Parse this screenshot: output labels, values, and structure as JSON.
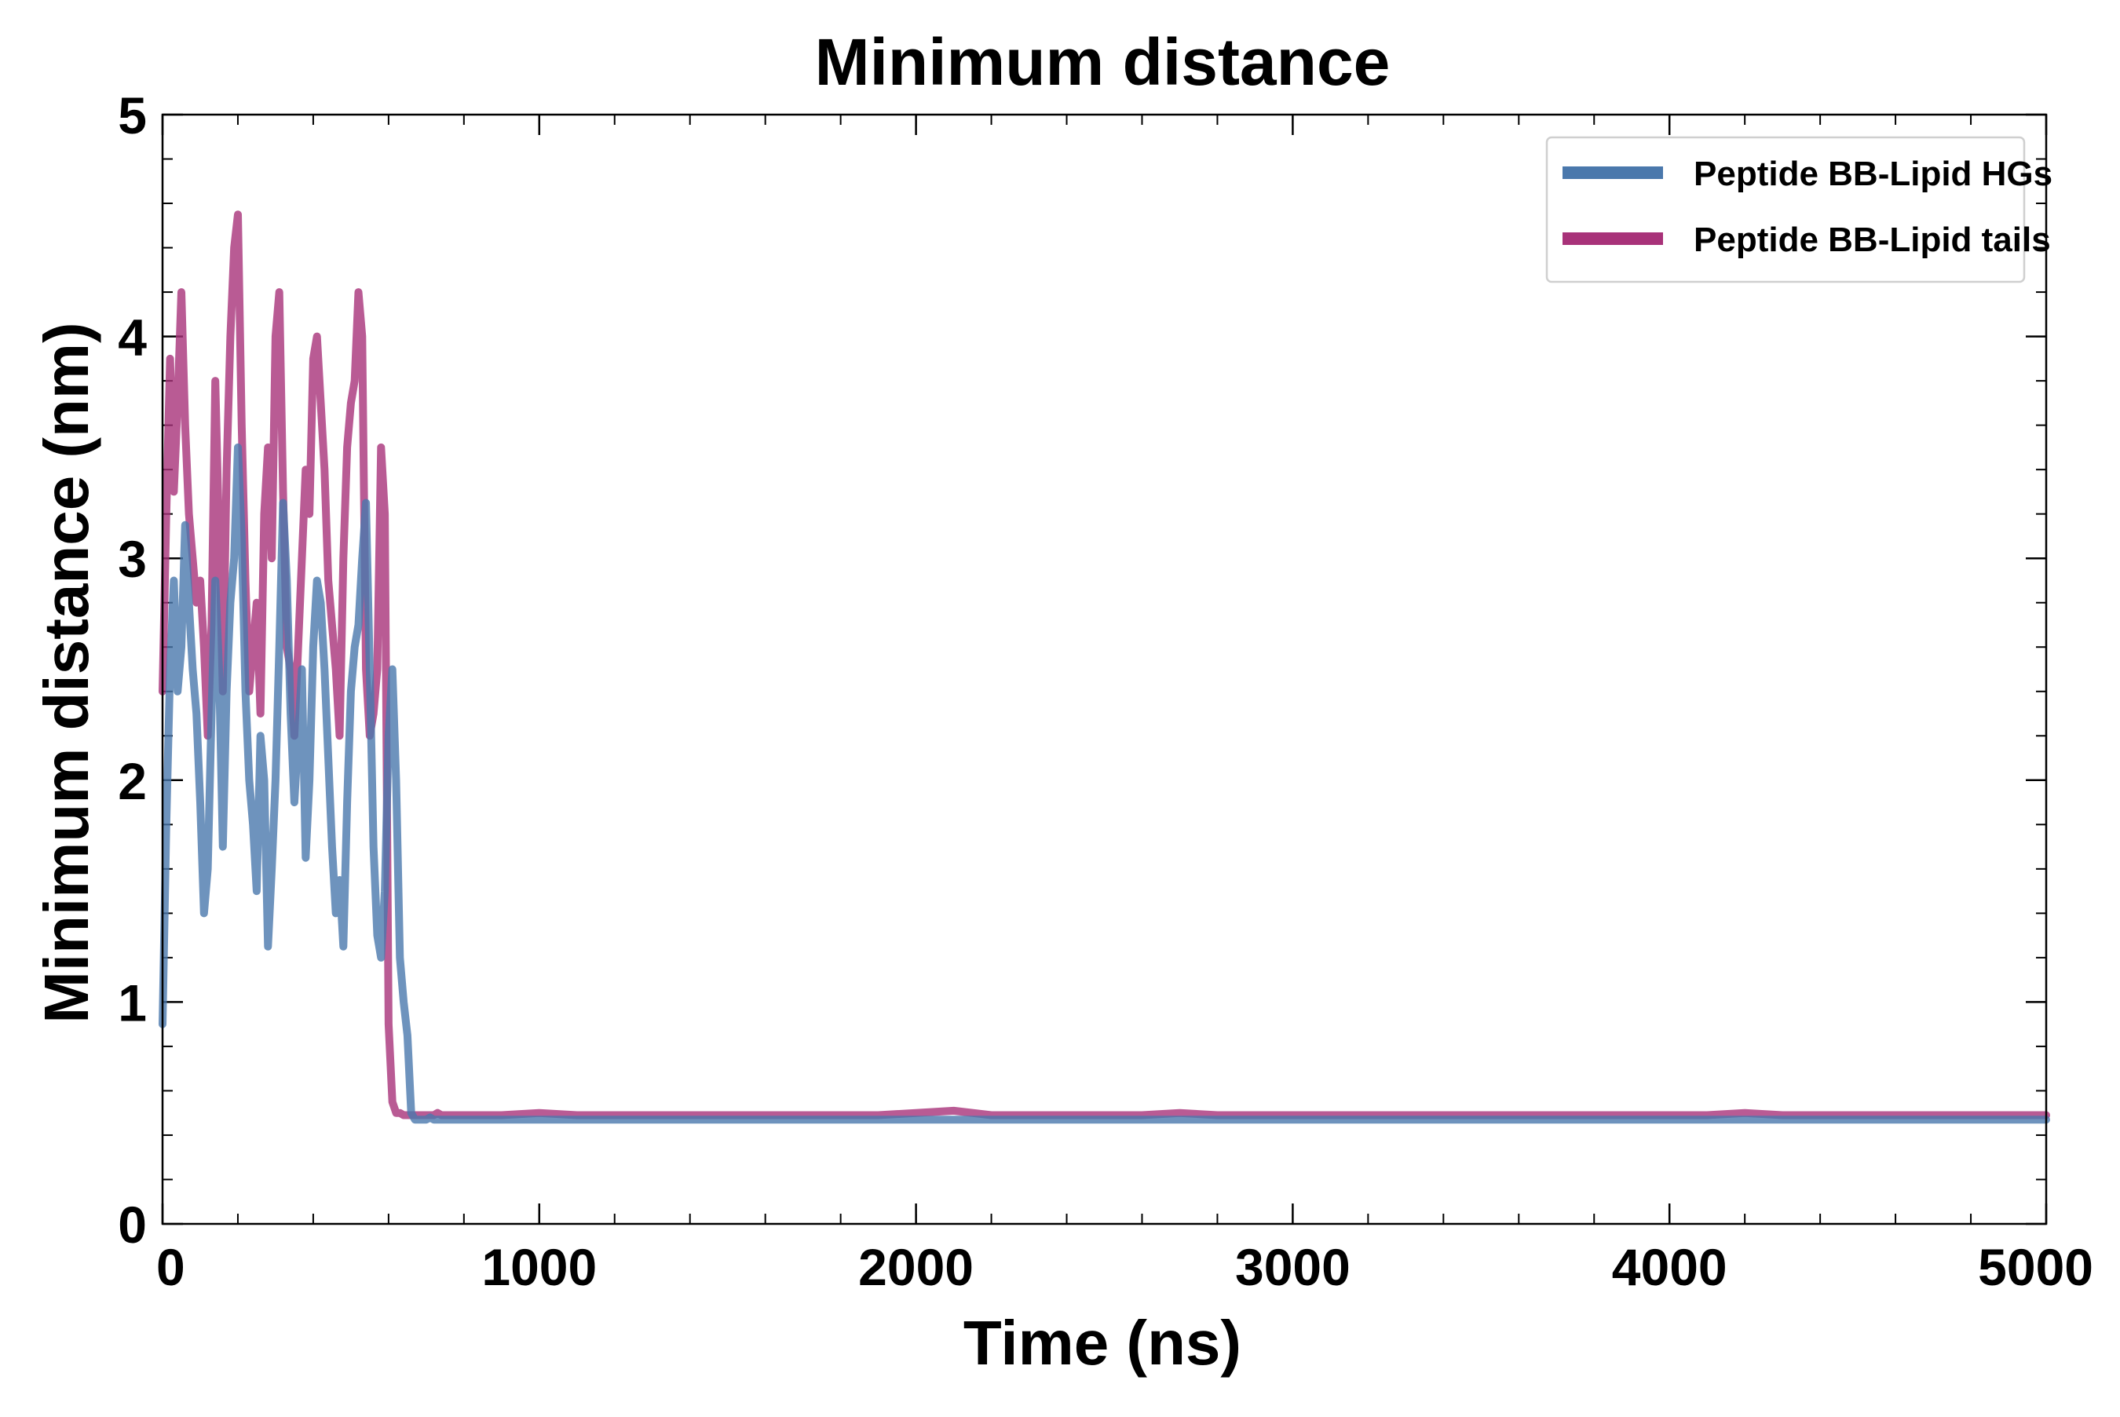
{
  "chart_data": {
    "type": "line",
    "title": "Minimum distance",
    "xlabel": "Time (ns)",
    "ylabel": "Minimum distance (nm)",
    "xlim": [
      0,
      5000
    ],
    "ylim": [
      0,
      5
    ],
    "x_ticks": [
      0,
      1000,
      2000,
      3000,
      4000,
      5000
    ],
    "y_ticks": [
      0,
      1,
      2,
      3,
      4,
      5
    ],
    "x_minor_step": 200,
    "y_minor_step": 0.2,
    "grid": false,
    "legend_position": "top-right",
    "series": [
      {
        "name": "Peptide BB-Lipid HGs",
        "color": "#4a78ac",
        "x": [
          0,
          10,
          20,
          30,
          40,
          50,
          60,
          70,
          80,
          90,
          100,
          110,
          120,
          130,
          140,
          150,
          160,
          170,
          180,
          190,
          200,
          210,
          220,
          230,
          240,
          250,
          260,
          270,
          280,
          290,
          300,
          310,
          320,
          330,
          340,
          350,
          360,
          370,
          380,
          390,
          400,
          410,
          420,
          430,
          440,
          450,
          460,
          470,
          480,
          490,
          500,
          510,
          520,
          530,
          540,
          550,
          560,
          570,
          580,
          590,
          600,
          610,
          620,
          630,
          640,
          650,
          660,
          670,
          680,
          690,
          700,
          710,
          720,
          730,
          740,
          760,
          800,
          900,
          1000,
          1100,
          1200,
          1300,
          1400,
          1500,
          1600,
          1700,
          1800,
          1900,
          2000,
          2100,
          2200,
          2300,
          2400,
          2500,
          2600,
          2700,
          2800,
          2900,
          3000,
          3100,
          3200,
          3300,
          3400,
          3500,
          3600,
          3700,
          3800,
          3900,
          4000,
          4100,
          4200,
          4300,
          4400,
          4500,
          4600,
          4700,
          4800,
          4900,
          5000
        ],
        "values": [
          0.9,
          1.8,
          2.5,
          2.9,
          2.4,
          2.6,
          3.15,
          2.8,
          2.5,
          2.3,
          1.9,
          1.4,
          1.6,
          2.3,
          2.9,
          2.5,
          1.7,
          2.4,
          2.8,
          3.0,
          3.5,
          3.1,
          2.4,
          2.0,
          1.8,
          1.5,
          2.2,
          2.0,
          1.25,
          1.6,
          2.0,
          2.6,
          3.25,
          2.9,
          2.3,
          1.9,
          2.2,
          2.5,
          1.65,
          2.0,
          2.6,
          2.9,
          2.8,
          2.5,
          2.1,
          1.7,
          1.4,
          1.55,
          1.25,
          1.9,
          2.4,
          2.6,
          2.7,
          3.0,
          3.25,
          2.5,
          1.7,
          1.3,
          1.2,
          1.5,
          2.2,
          2.5,
          2.0,
          1.2,
          1.0,
          0.85,
          0.5,
          0.47,
          0.47,
          0.47,
          0.47,
          0.48,
          0.47,
          0.47,
          0.47,
          0.47,
          0.47,
          0.47,
          0.47,
          0.47,
          0.47,
          0.47,
          0.47,
          0.47,
          0.47,
          0.47,
          0.47,
          0.47,
          0.47,
          0.47,
          0.47,
          0.47,
          0.47,
          0.47,
          0.47,
          0.47,
          0.47,
          0.47,
          0.47,
          0.47,
          0.47,
          0.47,
          0.47,
          0.47,
          0.47,
          0.47,
          0.47,
          0.47,
          0.47,
          0.47,
          0.47,
          0.47,
          0.47,
          0.47,
          0.47,
          0.47,
          0.47,
          0.47,
          0.47
        ]
      },
      {
        "name": "Peptide BB-Lipid tails",
        "color": "#a83279",
        "x": [
          0,
          10,
          20,
          30,
          40,
          50,
          60,
          70,
          80,
          90,
          100,
          110,
          120,
          130,
          140,
          150,
          160,
          170,
          180,
          190,
          200,
          210,
          220,
          230,
          240,
          250,
          260,
          270,
          280,
          290,
          300,
          310,
          320,
          330,
          340,
          350,
          360,
          370,
          380,
          390,
          400,
          410,
          420,
          430,
          440,
          450,
          460,
          470,
          480,
          490,
          500,
          510,
          520,
          530,
          540,
          550,
          560,
          570,
          580,
          590,
          600,
          610,
          620,
          630,
          640,
          650,
          660,
          670,
          680,
          690,
          700,
          710,
          720,
          730,
          740,
          760,
          800,
          900,
          1000,
          1100,
          1200,
          1300,
          1400,
          1500,
          1600,
          1700,
          1800,
          1900,
          2000,
          2100,
          2200,
          2300,
          2400,
          2500,
          2600,
          2700,
          2800,
          2900,
          3000,
          3100,
          3200,
          3300,
          3400,
          3500,
          3600,
          3700,
          3800,
          3900,
          4000,
          4100,
          4200,
          4300,
          4400,
          4500,
          4600,
          4700,
          4800,
          4900,
          5000
        ],
        "values": [
          2.4,
          3.2,
          3.9,
          3.3,
          3.7,
          4.2,
          3.6,
          3.2,
          3.0,
          2.8,
          2.9,
          2.6,
          2.2,
          2.7,
          3.8,
          3.1,
          2.4,
          3.4,
          4.0,
          4.4,
          4.55,
          3.6,
          2.9,
          2.4,
          2.6,
          2.8,
          2.3,
          3.2,
          3.5,
          3.0,
          4.0,
          4.2,
          3.3,
          2.6,
          2.5,
          2.2,
          2.6,
          3.0,
          3.4,
          3.2,
          3.9,
          4.0,
          3.7,
          3.4,
          2.9,
          2.7,
          2.5,
          2.2,
          3.0,
          3.5,
          3.7,
          3.8,
          4.2,
          4.0,
          2.5,
          2.2,
          2.3,
          2.5,
          3.5,
          3.2,
          0.9,
          0.55,
          0.5,
          0.5,
          0.49,
          0.49,
          0.49,
          0.49,
          0.49,
          0.49,
          0.49,
          0.49,
          0.49,
          0.5,
          0.49,
          0.49,
          0.49,
          0.49,
          0.5,
          0.49,
          0.49,
          0.49,
          0.49,
          0.49,
          0.49,
          0.49,
          0.49,
          0.49,
          0.5,
          0.51,
          0.49,
          0.49,
          0.49,
          0.49,
          0.49,
          0.5,
          0.49,
          0.49,
          0.49,
          0.49,
          0.49,
          0.49,
          0.49,
          0.49,
          0.49,
          0.49,
          0.49,
          0.49,
          0.49,
          0.49,
          0.5,
          0.49,
          0.49,
          0.49,
          0.49,
          0.49,
          0.49,
          0.49,
          0.49
        ]
      }
    ]
  }
}
